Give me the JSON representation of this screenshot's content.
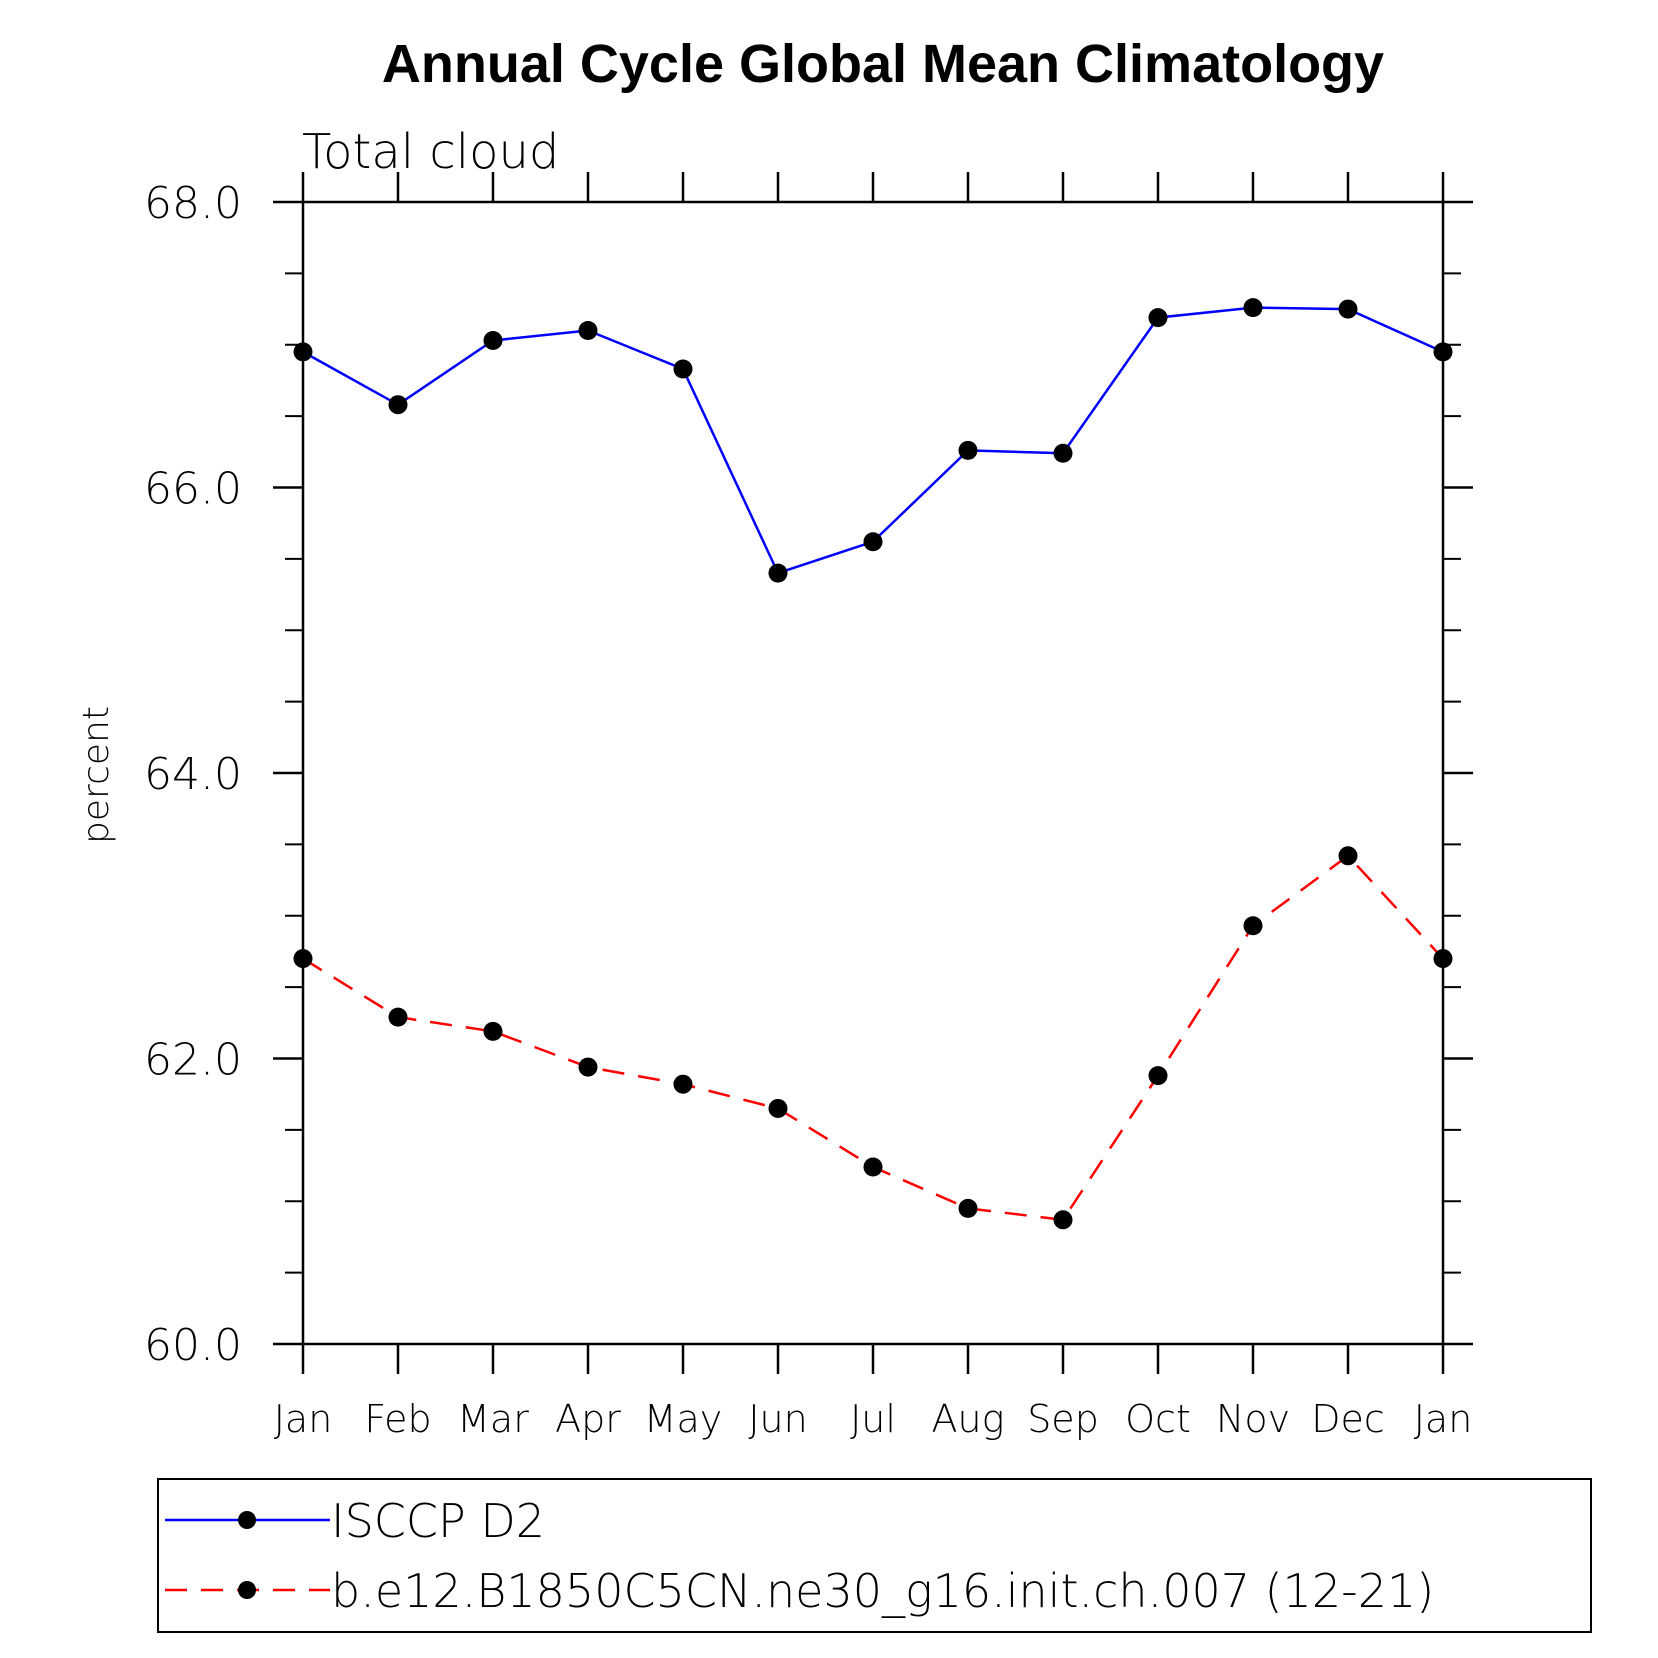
{
  "chart_data": {
    "type": "line",
    "title": "Annual Cycle Global Mean Climatology",
    "subtitle": "Total cloud",
    "xlabel": "",
    "ylabel": "percent",
    "categories": [
      "Jan",
      "Feb",
      "Mar",
      "Apr",
      "May",
      "Jun",
      "Jul",
      "Aug",
      "Sep",
      "Oct",
      "Nov",
      "Dec",
      "Jan"
    ],
    "ylim": [
      60.0,
      68.0
    ],
    "yticks": [
      "60.0",
      "62.0",
      "64.0",
      "66.0",
      "68.0"
    ],
    "yminor_step": 0.5,
    "grid": false,
    "legend_position": "bottom",
    "series": [
      {
        "name": "ISCCP D2",
        "color": "#0000ff",
        "dash": "solid",
        "values": [
          66.95,
          66.58,
          67.03,
          67.1,
          66.83,
          65.4,
          65.62,
          66.26,
          66.24,
          67.19,
          67.26,
          67.25,
          66.95
        ]
      },
      {
        "name": "b.e12.B1850C5CN.ne30_g16.init.ch.007 (12-21)",
        "color": "#ff0000",
        "dash": "dashed",
        "values": [
          62.7,
          62.29,
          62.19,
          61.94,
          61.82,
          61.65,
          61.24,
          60.95,
          60.87,
          61.88,
          62.93,
          63.42,
          62.7
        ]
      }
    ]
  }
}
